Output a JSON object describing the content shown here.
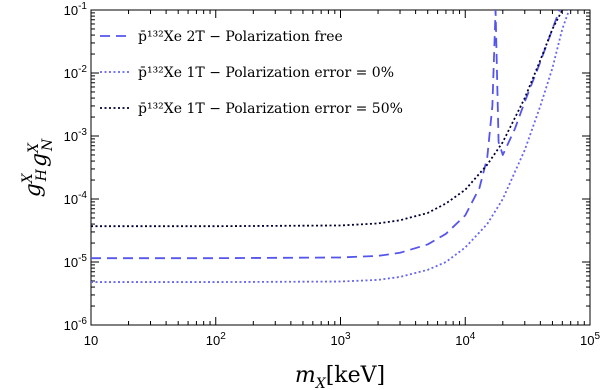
{
  "chart_data": {
    "type": "line",
    "title": "",
    "xlabel": "m_X[keV]",
    "ylabel": "g_H^X g_N^X",
    "xscale": "log",
    "yscale": "log",
    "xlim": [
      10,
      100000
    ],
    "ylim": [
      1e-06,
      0.1
    ],
    "grid": false,
    "legend_position": "top-left",
    "x_ticks": [
      10,
      100,
      1000,
      10000,
      100000
    ],
    "x_tick_labels": [
      {
        "base": "10",
        "exp": ""
      },
      {
        "base": "10",
        "exp": "2"
      },
      {
        "base": "10",
        "exp": "3"
      },
      {
        "base": "10",
        "exp": "4"
      },
      {
        "base": "10",
        "exp": "5"
      }
    ],
    "y_ticks": [
      1e-06,
      1e-05,
      0.0001,
      0.001,
      0.01,
      0.1
    ],
    "y_tick_labels": [
      {
        "base": "10",
        "exp": "-6"
      },
      {
        "base": "10",
        "exp": "-5"
      },
      {
        "base": "10",
        "exp": "-4"
      },
      {
        "base": "10",
        "exp": "-3"
      },
      {
        "base": "10",
        "exp": "-2"
      },
      {
        "base": "10",
        "exp": "-1"
      }
    ],
    "series": [
      {
        "name": "p̄¹³²Xe 2T − Polarization free",
        "color": "#5555ee",
        "dash": "dashed",
        "x": [
          10,
          100,
          1000,
          2000,
          3000,
          5000,
          7000,
          10000,
          13000,
          15000,
          16500,
          17500,
          18500,
          20000,
          25000,
          30000,
          40000,
          50000,
          57000
        ],
        "y": [
          1.15e-05,
          1.15e-05,
          1.18e-05,
          1.25e-05,
          1.4e-05,
          1.9e-05,
          2.8e-05,
          5.5e-05,
          0.00015,
          0.00045,
          0.003,
          0.1,
          0.0008,
          0.0005,
          0.0013,
          0.0035,
          0.015,
          0.05,
          0.1
        ]
      },
      {
        "name": "p̄¹³²Xe 1T − Polarization error = 0%",
        "color": "#6666ee",
        "dash": "dotted",
        "x": [
          10,
          100,
          1000,
          2000,
          3000,
          5000,
          7000,
          10000,
          15000,
          20000,
          30000,
          40000,
          50000,
          60000,
          68000
        ],
        "y": [
          4.8e-06,
          4.8e-06,
          4.9e-06,
          5.2e-06,
          5.8e-06,
          7.5e-06,
          1e-05,
          1.7e-05,
          4e-05,
          0.0001,
          0.0006,
          0.003,
          0.012,
          0.05,
          0.1
        ]
      },
      {
        "name": "p̄¹³²Xe 1T − Polarization error = 50%",
        "color": "#000033",
        "dash": "dotted",
        "x": [
          10,
          100,
          1000,
          2000,
          3000,
          5000,
          7000,
          10000,
          15000,
          20000,
          30000,
          40000,
          50000,
          60000
        ],
        "y": [
          3.7e-05,
          3.7e-05,
          3.8e-05,
          4.1e-05,
          4.6e-05,
          6e-05,
          8.5e-05,
          0.00014,
          0.00035,
          0.0008,
          0.004,
          0.016,
          0.05,
          0.1
        ]
      }
    ]
  }
}
